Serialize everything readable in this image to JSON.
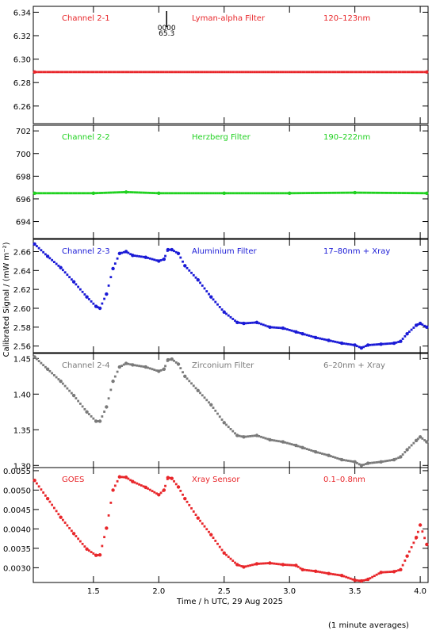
{
  "figure": {
    "xlabel": "Time / h UTC, 29 Aug 2025",
    "ylabel": "Calibrated Signal / (mW m⁻²)",
    "footnote": "(1 minute averages)",
    "xlim": [
      1.04,
      4.06
    ],
    "xticks": [
      "1.5",
      "2.0",
      "2.5",
      "3.0",
      "3.5",
      "4.0"
    ],
    "xtick_values": [
      1.5,
      2.0,
      2.5,
      3.0,
      3.5,
      4.0
    ],
    "marker_note": [
      "0000",
      "65.3"
    ],
    "marker_x": 2.06
  },
  "chart_data": [
    {
      "type": "scatter",
      "panel": "Channel 2-1",
      "filter": "Lyman-alpha Filter",
      "band": "120–123nm",
      "color": "#e8262a",
      "ylim": [
        6.245,
        6.345
      ],
      "yticks": [
        "6.26",
        "6.28",
        "6.30",
        "6.32",
        "6.34"
      ],
      "ytick_values": [
        6.26,
        6.28,
        6.3,
        6.32,
        6.34
      ],
      "x": [
        1.05,
        4.05
      ],
      "y": [
        6.289,
        6.289
      ]
    },
    {
      "type": "scatter",
      "panel": "Channel 2-2",
      "filter": "Herzberg Filter",
      "band": "190–222nm",
      "color": "#1fd11f",
      "ylim": [
        692.5,
        702.5
      ],
      "yticks": [
        "694",
        "696",
        "698",
        "700",
        "702"
      ],
      "ytick_values": [
        694,
        696,
        698,
        700,
        702
      ],
      "x": [
        1.05,
        1.5,
        1.75,
        2.0,
        2.5,
        3.0,
        3.5,
        4.05
      ],
      "y": [
        696.5,
        696.5,
        696.6,
        696.5,
        696.5,
        696.5,
        696.55,
        696.5
      ]
    },
    {
      "type": "scatter",
      "panel": "Channel 2-3",
      "filter": "Aluminium Filter",
      "band": "17–80nm + Xray",
      "color": "#1a1ad6",
      "ylim": [
        2.553,
        2.673
      ],
      "yticks": [
        "2.56",
        "2.58",
        "2.60",
        "2.62",
        "2.64",
        "2.66"
      ],
      "ytick_values": [
        2.56,
        2.58,
        2.6,
        2.62,
        2.64,
        2.66
      ],
      "x": [
        1.05,
        1.15,
        1.25,
        1.35,
        1.45,
        1.52,
        1.55,
        1.6,
        1.65,
        1.7,
        1.75,
        1.8,
        1.9,
        2.0,
        2.04,
        2.07,
        2.1,
        2.15,
        2.2,
        2.3,
        2.4,
        2.5,
        2.6,
        2.65,
        2.75,
        2.85,
        2.95,
        3.05,
        3.1,
        3.2,
        3.3,
        3.4,
        3.5,
        3.55,
        3.6,
        3.7,
        3.8,
        3.85,
        3.9,
        3.97,
        4.0,
        4.05
      ],
      "y": [
        2.668,
        2.655,
        2.643,
        2.628,
        2.612,
        2.602,
        2.6,
        2.615,
        2.642,
        2.658,
        2.66,
        2.656,
        2.654,
        2.65,
        2.652,
        2.662,
        2.662,
        2.658,
        2.645,
        2.63,
        2.612,
        2.596,
        2.585,
        2.584,
        2.585,
        2.58,
        2.579,
        2.575,
        2.573,
        2.569,
        2.566,
        2.563,
        2.561,
        2.558,
        2.561,
        2.562,
        2.563,
        2.565,
        2.573,
        2.582,
        2.584,
        2.58
      ]
    },
    {
      "type": "scatter",
      "panel": "Channel 2-4",
      "filter": "Zirconium Filter",
      "band": "6–20nm + Xray",
      "color": "#7a7a7a",
      "ylim": [
        1.297,
        1.457
      ],
      "yticks": [
        "1.30",
        "1.35",
        "1.40",
        "1.45"
      ],
      "ytick_values": [
        1.3,
        1.35,
        1.4,
        1.45
      ],
      "x": [
        1.05,
        1.15,
        1.25,
        1.35,
        1.45,
        1.52,
        1.55,
        1.6,
        1.65,
        1.7,
        1.75,
        1.8,
        1.9,
        2.0,
        2.04,
        2.07,
        2.1,
        2.15,
        2.2,
        2.3,
        2.4,
        2.5,
        2.6,
        2.65,
        2.75,
        2.85,
        2.95,
        3.05,
        3.1,
        3.2,
        3.3,
        3.4,
        3.5,
        3.55,
        3.6,
        3.7,
        3.8,
        3.85,
        3.9,
        3.97,
        4.0,
        4.05
      ],
      "y": [
        1.452,
        1.435,
        1.418,
        1.398,
        1.375,
        1.362,
        1.362,
        1.382,
        1.418,
        1.438,
        1.443,
        1.441,
        1.438,
        1.432,
        1.435,
        1.448,
        1.449,
        1.442,
        1.425,
        1.405,
        1.385,
        1.36,
        1.342,
        1.34,
        1.342,
        1.336,
        1.333,
        1.328,
        1.325,
        1.319,
        1.314,
        1.308,
        1.305,
        1.3,
        1.303,
        1.305,
        1.308,
        1.312,
        1.322,
        1.335,
        1.34,
        1.333
      ]
    },
    {
      "type": "scatter",
      "panel": "GOES",
      "filter": "Xray Sensor",
      "band": "0.1–0.8nm",
      "color": "#e8262a",
      "ylim": [
        0.00262,
        0.00558
      ],
      "yticks": [
        "0.0030",
        "0.0035",
        "0.0040",
        "0.0045",
        "0.0050",
        "0.0055"
      ],
      "ytick_values": [
        0.003,
        0.0035,
        0.004,
        0.0045,
        0.005,
        0.0055
      ],
      "x": [
        1.05,
        1.15,
        1.25,
        1.35,
        1.45,
        1.52,
        1.55,
        1.6,
        1.65,
        1.7,
        1.75,
        1.8,
        1.9,
        2.0,
        2.04,
        2.07,
        2.1,
        2.15,
        2.2,
        2.3,
        2.4,
        2.5,
        2.6,
        2.65,
        2.75,
        2.85,
        2.95,
        3.05,
        3.1,
        3.2,
        3.3,
        3.4,
        3.5,
        3.55,
        3.6,
        3.7,
        3.8,
        3.85,
        3.9,
        3.97,
        4.0,
        4.05
      ],
      "y": [
        0.00525,
        0.00478,
        0.0043,
        0.00388,
        0.00348,
        0.00332,
        0.00333,
        0.00402,
        0.005,
        0.00534,
        0.00533,
        0.00522,
        0.00507,
        0.00488,
        0.005,
        0.00532,
        0.0053,
        0.00508,
        0.00478,
        0.00428,
        0.00385,
        0.00338,
        0.00308,
        0.00302,
        0.0031,
        0.00312,
        0.00308,
        0.00306,
        0.00295,
        0.00291,
        0.00285,
        0.0028,
        0.00268,
        0.00266,
        0.0027,
        0.00288,
        0.0029,
        0.00295,
        0.0033,
        0.00378,
        0.0041,
        0.0036
      ]
    }
  ]
}
